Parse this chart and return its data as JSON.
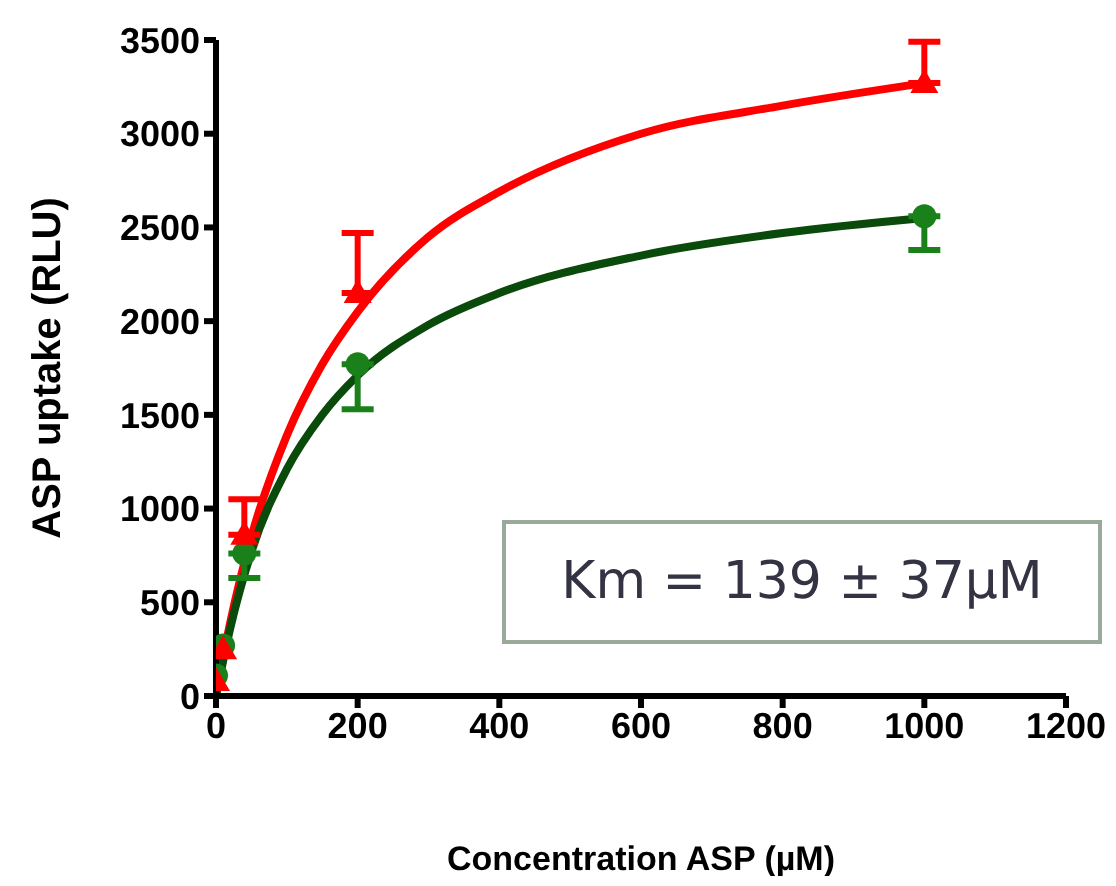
{
  "chart_data": {
    "type": "scatter",
    "xlabel": "Concentration ASP (µM)",
    "ylabel": "ASP uptake  (RLU)",
    "xlim": [
      0,
      1200
    ],
    "xticks": [
      0,
      200,
      400,
      600,
      800,
      1000,
      1200
    ],
    "ylim": [
      0,
      3500
    ],
    "yticks": [
      0,
      500,
      1000,
      1500,
      2000,
      2500,
      3000,
      3500
    ],
    "x": [
      0,
      10,
      40,
      200,
      1000
    ],
    "series": [
      {
        "type": "line",
        "color": "#ff0000",
        "marker": "none",
        "x": [
          0,
          20,
          50,
          100,
          150,
          200,
          300,
          400,
          600,
          800,
          1000
        ],
        "values": [
          0,
          390,
          850,
          1390,
          1770,
          2050,
          2450,
          2690,
          3000,
          3150,
          3270
        ]
      },
      {
        "type": "line",
        "color": "#0a4a0a",
        "marker": "none",
        "x": [
          0,
          20,
          50,
          100,
          150,
          200,
          300,
          400,
          600,
          800,
          1000
        ],
        "values": [
          0,
          360,
          770,
          1210,
          1500,
          1710,
          1980,
          2150,
          2350,
          2470,
          2550
        ]
      },
      {
        "color": "#1a801a",
        "marker": "circle",
        "values": [
          110,
          270,
          760,
          1770,
          2560
        ],
        "errors": [
          null,
          null,
          [
            630,
            760
          ],
          [
            1530,
            1770
          ],
          [
            2380,
            2560
          ]
        ]
      },
      {
        "color": "#ff0000",
        "marker": "triangle",
        "values": [
          80,
          250,
          860,
          2150,
          3270
        ],
        "errors": [
          null,
          null,
          [
            860,
            1050
          ],
          [
            2150,
            2470
          ],
          [
            3270,
            3490
          ]
        ]
      }
    ],
    "annotations": [
      "Km = 139 ± 37µM"
    ],
    "legend": false,
    "grid": false
  }
}
